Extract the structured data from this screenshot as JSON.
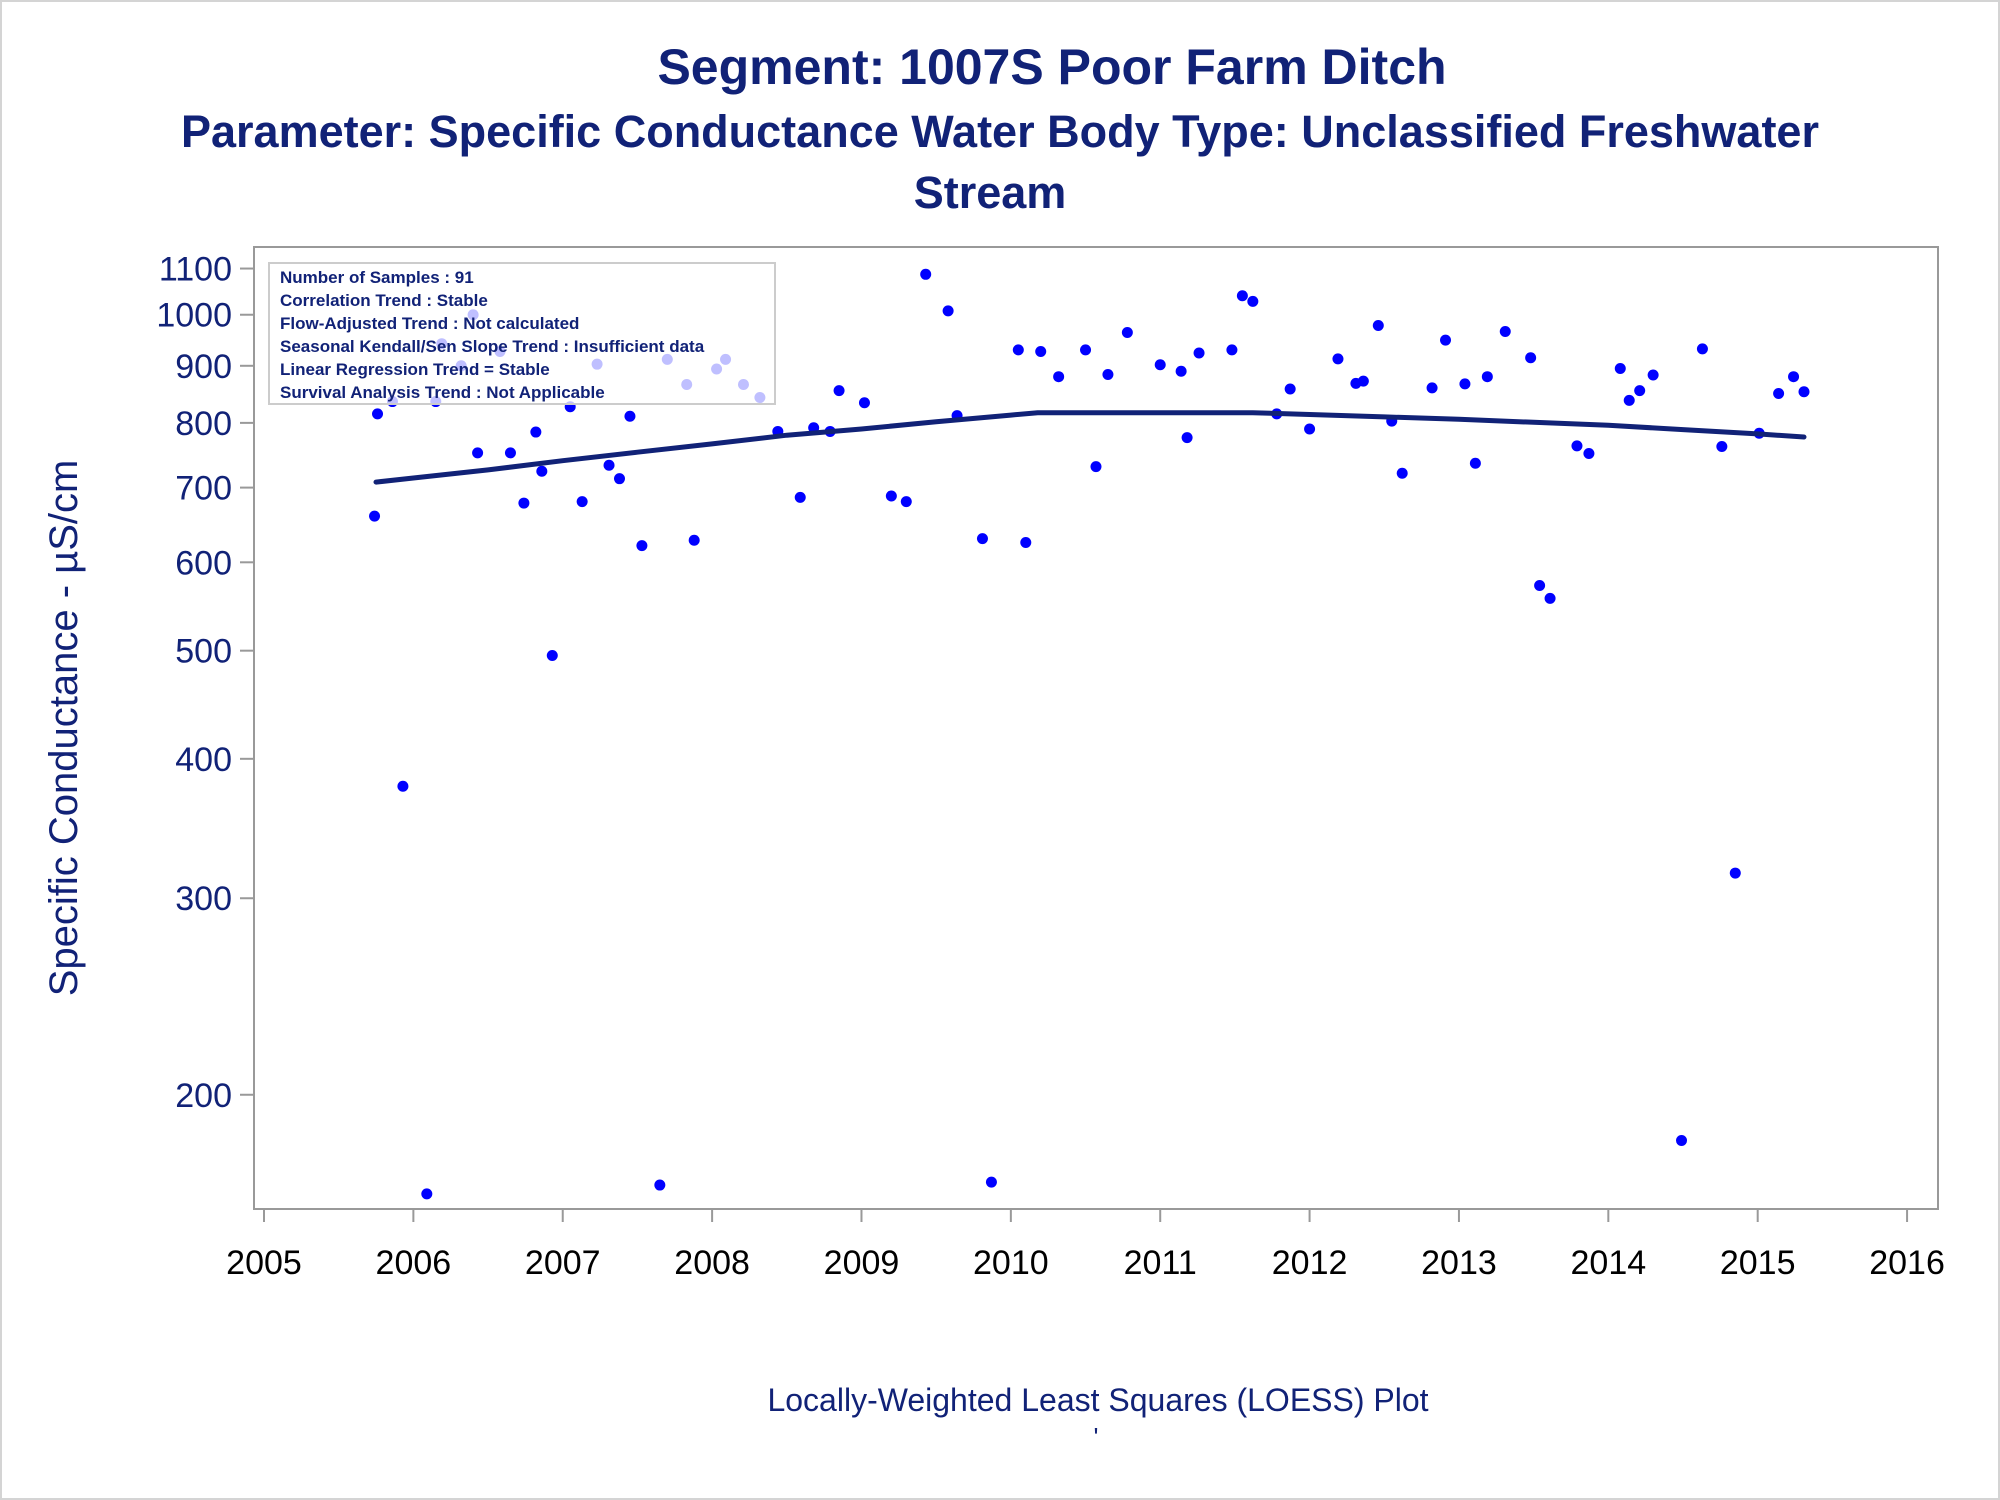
{
  "colors": {
    "title": "#112277",
    "axis_label": "#112277",
    "tick_label": "#112277",
    "x_tick_label": "#000000",
    "points": "#0000ff",
    "loess_line": "#112277",
    "frame": "#999999"
  },
  "titles": {
    "line1": "Segment: 1007S  Poor Farm Ditch",
    "line2": "Parameter: Specific Conductance   Water Body Type: Unclassified Freshwater",
    "line3": "Stream"
  },
  "stats_box": {
    "lines": [
      "Number of Samples : 91",
      "Correlation Trend : Stable",
      "Flow-Adjusted Trend : Not calculated",
      "Seasonal Kendall/Sen Slope Trend : Insufficient data",
      "Linear Regression Trend = Stable",
      "Survival Analysis Trend : Not Applicable"
    ]
  },
  "footnote": "Locally-Weighted Least Squares (LOESS) Plot",
  "footmark": "'",
  "chart_data": {
    "type": "scatter",
    "ylabel": "Specific Conductance -  µS/cm",
    "xlabel": "",
    "y_scale": "log",
    "grid": false,
    "legend": "none",
    "xlim": [
      2005.0,
      2016.1
    ],
    "ylim": [
      158,
      1150
    ],
    "x_ticks": [
      2005,
      2006,
      2007,
      2008,
      2009,
      2010,
      2011,
      2012,
      2013,
      2014,
      2015,
      2016
    ],
    "y_ticks": [
      200,
      300,
      400,
      500,
      600,
      700,
      800,
      900,
      1000,
      1100
    ],
    "series": [
      {
        "kind": "points",
        "points": [
          [
            2005.74,
            660
          ],
          [
            2005.76,
            815
          ],
          [
            2005.86,
            836
          ],
          [
            2005.93,
            378
          ],
          [
            2006.09,
            163
          ],
          [
            2006.15,
            836
          ],
          [
            2006.19,
            942
          ],
          [
            2006.32,
            900
          ],
          [
            2006.4,
            1000
          ],
          [
            2006.43,
            752
          ],
          [
            2006.58,
            927
          ],
          [
            2006.65,
            752
          ],
          [
            2006.74,
            678
          ],
          [
            2006.82,
            785
          ],
          [
            2006.86,
            724
          ],
          [
            2006.93,
            495
          ],
          [
            2007.05,
            827
          ],
          [
            2007.13,
            680
          ],
          [
            2007.23,
            903
          ],
          [
            2007.31,
            733
          ],
          [
            2007.38,
            713
          ],
          [
            2007.45,
            811
          ],
          [
            2007.53,
            621
          ],
          [
            2007.65,
            166
          ],
          [
            2007.7,
            912
          ],
          [
            2007.83,
            866
          ],
          [
            2007.88,
            628
          ],
          [
            2008.03,
            894
          ],
          [
            2008.09,
            912
          ],
          [
            2008.21,
            866
          ],
          [
            2008.32,
            843
          ],
          [
            2008.44,
            786
          ],
          [
            2008.59,
            686
          ],
          [
            2008.68,
            792
          ],
          [
            2008.79,
            786
          ],
          [
            2008.85,
            855
          ],
          [
            2009.02,
            834
          ],
          [
            2009.2,
            688
          ],
          [
            2009.3,
            680
          ],
          [
            2009.43,
            1087
          ],
          [
            2009.58,
            1008
          ],
          [
            2009.64,
            812
          ],
          [
            2009.81,
            630
          ],
          [
            2009.87,
            167
          ],
          [
            2010.05,
            930
          ],
          [
            2010.1,
            625
          ],
          [
            2010.2,
            927
          ],
          [
            2010.32,
            880
          ],
          [
            2010.5,
            930
          ],
          [
            2010.57,
            731
          ],
          [
            2010.65,
            884
          ],
          [
            2010.78,
            964
          ],
          [
            2011.0,
            902
          ],
          [
            2011.14,
            890
          ],
          [
            2011.18,
            776
          ],
          [
            2011.26,
            924
          ],
          [
            2011.48,
            930
          ],
          [
            2011.55,
            1040
          ],
          [
            2011.62,
            1028
          ],
          [
            2011.78,
            815
          ],
          [
            2011.87,
            858
          ],
          [
            2012.0,
            790
          ],
          [
            2012.19,
            913
          ],
          [
            2012.31,
            868
          ],
          [
            2012.36,
            872
          ],
          [
            2012.46,
            978
          ],
          [
            2012.55,
            803
          ],
          [
            2012.62,
            721
          ],
          [
            2012.82,
            860
          ],
          [
            2012.91,
            949
          ],
          [
            2013.04,
            867
          ],
          [
            2013.11,
            736
          ],
          [
            2013.19,
            880
          ],
          [
            2013.31,
            966
          ],
          [
            2013.48,
            915
          ],
          [
            2013.54,
            572
          ],
          [
            2013.61,
            557
          ],
          [
            2013.79,
            763
          ],
          [
            2013.87,
            751
          ],
          [
            2014.08,
            895
          ],
          [
            2014.14,
            838
          ],
          [
            2014.21,
            855
          ],
          [
            2014.3,
            883
          ],
          [
            2014.49,
            182
          ],
          [
            2014.63,
            932
          ],
          [
            2014.76,
            762
          ],
          [
            2014.85,
            316
          ],
          [
            2015.01,
            783
          ],
          [
            2015.14,
            850
          ],
          [
            2015.24,
            880
          ],
          [
            2015.31,
            853
          ]
        ]
      },
      {
        "kind": "loess",
        "points": [
          [
            2005.75,
            708
          ],
          [
            2006.0,
            714
          ],
          [
            2006.5,
            726
          ],
          [
            2007.0,
            740
          ],
          [
            2007.5,
            753
          ],
          [
            2008.0,
            766
          ],
          [
            2008.5,
            780
          ],
          [
            2009.0,
            790
          ],
          [
            2009.5,
            802
          ],
          [
            2010.0,
            813
          ],
          [
            2010.18,
            817
          ],
          [
            2011.0,
            817
          ],
          [
            2011.62,
            817
          ],
          [
            2012.0,
            814
          ],
          [
            2012.5,
            810
          ],
          [
            2013.0,
            806
          ],
          [
            2013.5,
            801
          ],
          [
            2014.0,
            796
          ],
          [
            2014.5,
            789
          ],
          [
            2015.0,
            782
          ],
          [
            2015.31,
            777
          ]
        ]
      }
    ]
  }
}
